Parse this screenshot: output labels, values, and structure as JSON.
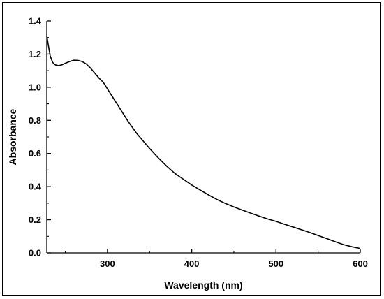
{
  "chart_data": {
    "type": "line",
    "xlabel": "Wavelength (nm)",
    "ylabel": "Absorbance",
    "xlim": [
      228,
      600
    ],
    "ylim": [
      0.0,
      1.4
    ],
    "grid": false,
    "xticks": [
      {
        "value": 300,
        "label": "300"
      },
      {
        "value": 400,
        "label": "400"
      },
      {
        "value": 500,
        "label": "500"
      },
      {
        "value": 600,
        "label": "600"
      }
    ],
    "yticks": [
      {
        "value": 0.0,
        "label": "0.0"
      },
      {
        "value": 0.2,
        "label": "0.2"
      },
      {
        "value": 0.4,
        "label": "0.4"
      },
      {
        "value": 0.6,
        "label": "0.6"
      },
      {
        "value": 0.8,
        "label": "0.8"
      },
      {
        "value": 1.0,
        "label": "1.0"
      },
      {
        "value": 1.2,
        "label": "1.2"
      },
      {
        "value": 1.4,
        "label": "1.4"
      }
    ],
    "series": [
      {
        "color": "#000000",
        "x": [
          228,
          230,
          232,
          235,
          238,
          242,
          246,
          250,
          255,
          260,
          265,
          270,
          275,
          280,
          285,
          290,
          295,
          300,
          305,
          310,
          315,
          320,
          325,
          330,
          335,
          340,
          345,
          350,
          360,
          370,
          380,
          390,
          400,
          410,
          420,
          430,
          440,
          450,
          460,
          470,
          480,
          490,
          500,
          510,
          520,
          530,
          540,
          550,
          560,
          570,
          580,
          590,
          600
        ],
        "y": [
          1.31,
          1.25,
          1.19,
          1.15,
          1.135,
          1.13,
          1.135,
          1.145,
          1.155,
          1.163,
          1.162,
          1.155,
          1.14,
          1.115,
          1.085,
          1.055,
          1.03,
          0.99,
          0.95,
          0.91,
          0.87,
          0.83,
          0.79,
          0.755,
          0.72,
          0.69,
          0.66,
          0.63,
          0.575,
          0.525,
          0.48,
          0.445,
          0.41,
          0.38,
          0.35,
          0.322,
          0.298,
          0.277,
          0.258,
          0.24,
          0.222,
          0.205,
          0.19,
          0.173,
          0.157,
          0.14,
          0.123,
          0.105,
          0.087,
          0.068,
          0.05,
          0.037,
          0.027
        ]
      }
    ]
  }
}
